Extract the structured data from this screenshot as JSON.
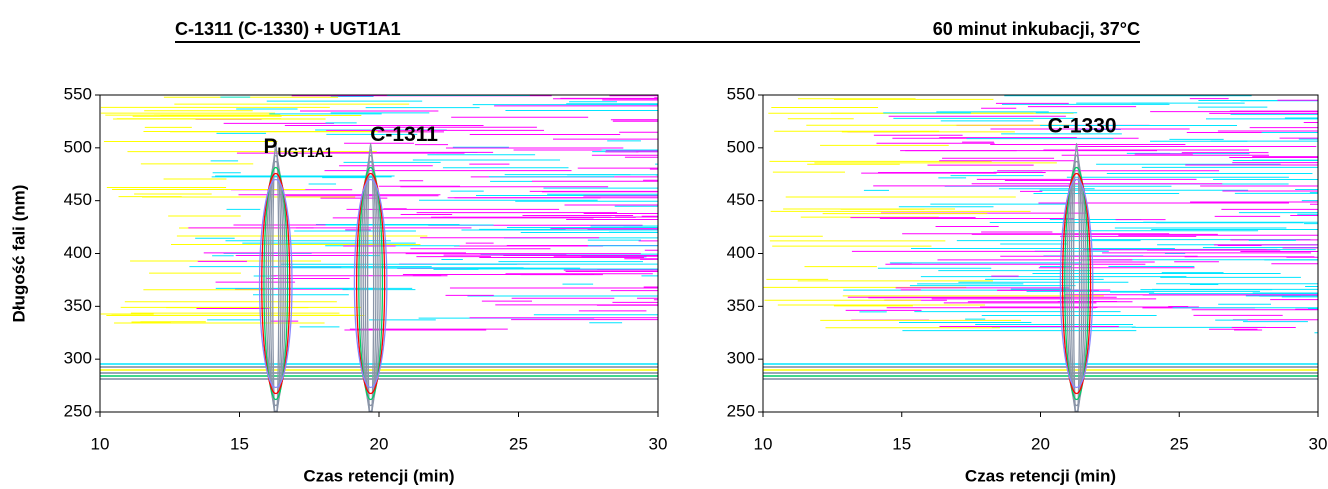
{
  "chart_data": [
    {
      "type": "contour",
      "title": "C-1311 (C-1330) + UGT1A1",
      "xlabel": "Czas retencji (min)",
      "ylabel": "Długość fali (nm)",
      "xlim": [
        10,
        30
      ],
      "xticks": [
        10,
        15,
        20,
        25,
        30
      ],
      "ylim": [
        250,
        550
      ],
      "yticks": [
        250,
        300,
        350,
        400,
        450,
        500,
        550
      ],
      "peaks": [
        16.3,
        19.7
      ],
      "annotations": [
        {
          "text": "P",
          "sub": "UGT1A1",
          "x": 17.1,
          "y": 501
        },
        {
          "text": "C-1311",
          "x": 20.9,
          "y": 512
        }
      ]
    },
    {
      "type": "contour",
      "title": "60 minut inkubacji, 37°C",
      "xlabel": "Czas retencji (min)",
      "xlim": [
        10,
        30
      ],
      "xticks": [
        10,
        15,
        20,
        25,
        30
      ],
      "ylim": [
        250,
        550
      ],
      "yticks": [
        250,
        300,
        350,
        400,
        450,
        500,
        550
      ],
      "peaks": [
        21.3
      ],
      "annotations": [
        {
          "text": "C-1330",
          "x": 21.5,
          "y": 520
        }
      ]
    }
  ]
}
